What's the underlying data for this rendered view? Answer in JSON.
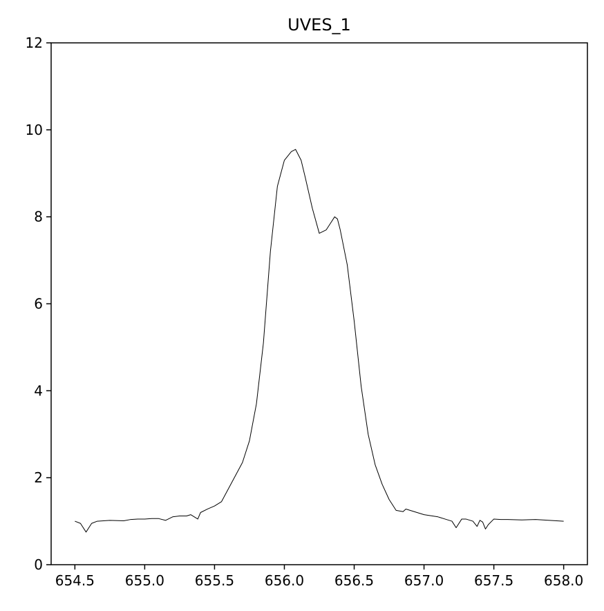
{
  "chart_data": {
    "type": "line",
    "title": "UVES_1",
    "xlabel": "",
    "ylabel": "",
    "xlim": [
      654.33,
      658.17
    ],
    "ylim": [
      0,
      12
    ],
    "xticks": [
      "654.5",
      "655.0",
      "655.5",
      "656.0",
      "656.5",
      "657.0",
      "657.5",
      "658.0"
    ],
    "yticks": [
      "0",
      "2",
      "4",
      "6",
      "8",
      "10",
      "12"
    ],
    "grid": false,
    "legend": "none",
    "line_color": "#000000",
    "series": [
      {
        "x": [
          654.5,
          654.54,
          654.58,
          654.62,
          654.66,
          654.75,
          654.85,
          654.9,
          654.95,
          655.0,
          655.05,
          655.1,
          655.15,
          655.2,
          655.25,
          655.3,
          655.33,
          655.38,
          655.4,
          655.45,
          655.5,
          655.55,
          655.6,
          655.65,
          655.7,
          655.75,
          655.8,
          655.85,
          655.9,
          655.95,
          656.0,
          656.05,
          656.08,
          656.12,
          656.15,
          656.2,
          656.25,
          656.3,
          656.33,
          656.36,
          656.38,
          656.4,
          656.45,
          656.5,
          656.55,
          656.6,
          656.65,
          656.7,
          656.75,
          656.8,
          656.85,
          656.87,
          656.9,
          657.0,
          657.1,
          657.15,
          657.2,
          657.23,
          657.27,
          657.3,
          657.35,
          657.38,
          657.4,
          657.42,
          657.44,
          657.46,
          657.5,
          657.55,
          657.6,
          657.7,
          657.8,
          657.9,
          658.0
        ],
        "y": [
          1.0,
          0.95,
          0.75,
          0.95,
          1.0,
          1.02,
          1.01,
          1.04,
          1.05,
          1.05,
          1.06,
          1.06,
          1.02,
          1.1,
          1.12,
          1.12,
          1.15,
          1.05,
          1.2,
          1.28,
          1.35,
          1.45,
          1.75,
          2.05,
          2.35,
          2.85,
          3.7,
          5.1,
          7.2,
          8.7,
          9.3,
          9.5,
          9.55,
          9.3,
          8.9,
          8.2,
          7.62,
          7.7,
          7.85,
          8.0,
          7.95,
          7.7,
          6.9,
          5.6,
          4.1,
          3.0,
          2.3,
          1.85,
          1.5,
          1.25,
          1.22,
          1.28,
          1.25,
          1.15,
          1.1,
          1.05,
          1.0,
          0.85,
          1.05,
          1.05,
          1.0,
          0.88,
          1.02,
          0.98,
          0.82,
          0.92,
          1.05,
          1.04,
          1.04,
          1.03,
          1.04,
          1.02,
          1.0
        ]
      }
    ]
  }
}
